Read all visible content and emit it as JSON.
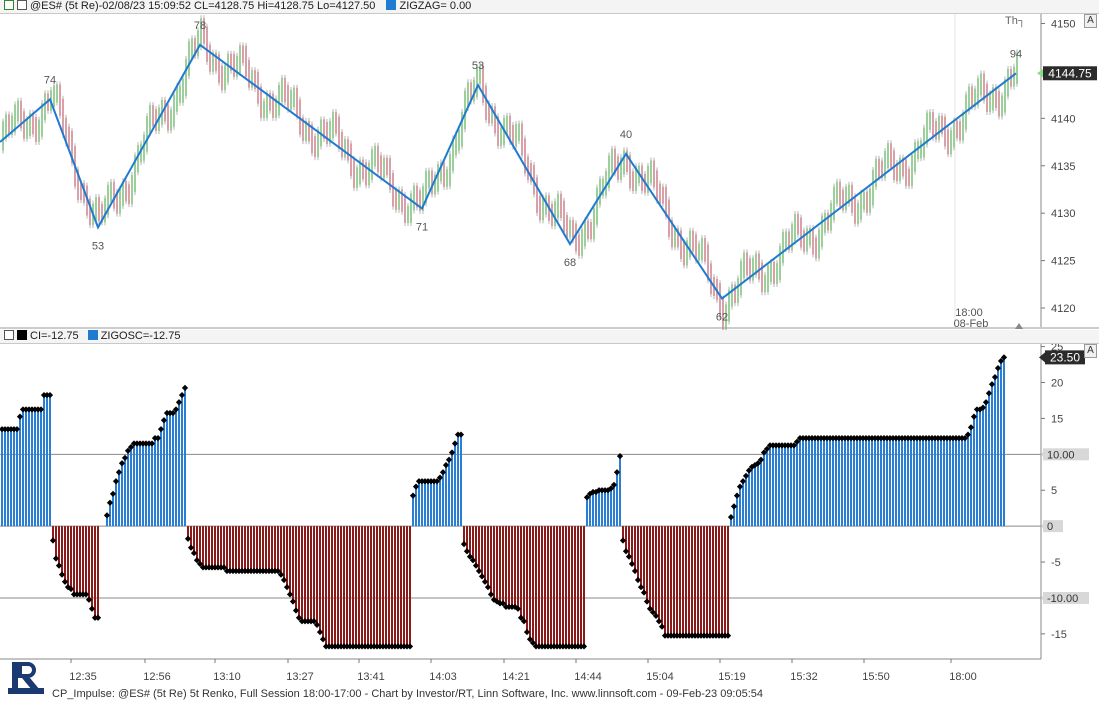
{
  "top_header": {
    "symbol_text": "@ES# (5t Re)-02/08/23 15:09:52 CL=4128.75 Hi=4128.75 Lo=4127.50",
    "zigzag_text": "ZIGZAG= 0.00"
  },
  "bottom_header": {
    "ci_text": "CI=-12.75",
    "zigosc_text": "ZIGOSC=-12.75"
  },
  "autoscale_label": "A",
  "day_marker": "Th┐",
  "footer_text": "CP_Impulse: @ES# (5t Re) 5t Renko, Full Session 18:00-17:00 - Chart by Investor/RT, Linn Software, Inc. www.linnsoft.com - 09-Feb-23 09:05:54",
  "colors": {
    "up_bar": "#2a7fd4",
    "down_bar": "#8b1a1a",
    "zigzag": "#1f7ad1",
    "ci_dot": "#000000",
    "renko_up": "#9bd09b",
    "renko_down": "#d9a0a8",
    "price_marker": "#7ee07e"
  },
  "chart_data": [
    {
      "type": "line",
      "name": "price_panel",
      "ylim": [
        4118,
        4151
      ],
      "y_ticks": [
        4120,
        4125,
        4130,
        4135,
        4140,
        4145,
        4150
      ],
      "last_price_label": "4144.75",
      "date_annotation": [
        "18:00",
        "08-Feb"
      ],
      "zigzag": {
        "x": [
          0,
          50,
          98,
          200,
          422,
          478,
          570,
          626,
          722,
          1016
        ],
        "y": [
          4137.5,
          4142.0,
          4128.5,
          4147.75,
          4130.5,
          4143.5,
          4126.75,
          4136.25,
          4121.0,
          4144.75
        ],
        "pivot_labels": [
          "",
          "74",
          "53",
          "78",
          "71",
          "53",
          "68",
          "40",
          "62",
          "94"
        ]
      }
    },
    {
      "type": "bar",
      "name": "oscillator_panel",
      "ylim": [
        -18.5,
        25.5
      ],
      "y_ticks": [
        -15,
        -10,
        -5,
        0,
        5,
        10,
        15,
        20,
        25
      ],
      "reference_lines": [
        10,
        0,
        -10
      ],
      "last_value_label": "23.50",
      "ref_labels": [
        "10.00",
        "0",
        "-10.00"
      ],
      "x_time_labels": [
        "12:35",
        "12:56",
        "13:10",
        "13:27",
        "13:41",
        "14:03",
        "14:21",
        "14:44",
        "15:04",
        "15:19",
        "15:32",
        "15:50",
        "18:00"
      ],
      "zigosc_series": {
        "start_x": 2,
        "step": 3,
        "values": [
          13.5,
          13.5,
          13.5,
          13.5,
          13.5,
          13.5,
          15.25,
          16.25,
          16.25,
          16.25,
          16.25,
          16.25,
          16.25,
          16.25,
          18.25,
          18.25,
          18.25,
          -2.0,
          -4.5,
          -5.5,
          -6.75,
          -7.75,
          -8.5,
          -8.75,
          -9.5,
          -9.5,
          -9.5,
          -9.5,
          -9.5,
          -10.25,
          -11.5,
          -12.75,
          -12.75,
          0,
          0,
          1.5,
          3.25,
          4.5,
          6.25,
          7.5,
          8.75,
          9.5,
          10.5,
          11.0,
          11.5,
          11.5,
          11.5,
          11.5,
          11.5,
          11.5,
          11.5,
          12.25,
          12.25,
          13.5,
          14.75,
          15.75,
          15.75,
          15.75,
          16.25,
          17.25,
          18.25,
          19.25,
          -1.75,
          -3.0,
          -3.75,
          -4.75,
          -5.25,
          -5.75,
          -5.75,
          -5.75,
          -5.75,
          -5.75,
          -5.75,
          -5.75,
          -5.75,
          -6.25,
          -6.25,
          -6.25,
          -6.25,
          -6.25,
          -6.25,
          -6.25,
          -6.25,
          -6.25,
          -6.25,
          -6.25,
          -6.25,
          -6.25,
          -6.25,
          -6.25,
          -6.25,
          -6.25,
          -6.25,
          -6.75,
          -7.5,
          -8.5,
          -9.5,
          -10.5,
          -11.75,
          -12.75,
          -13.25,
          -13.25,
          -13.25,
          -13.25,
          -13.25,
          -13.75,
          -14.75,
          -15.75,
          -16.75,
          -16.75,
          -16.75,
          -16.75,
          -16.75,
          -16.75,
          -16.75,
          -16.75,
          -16.75,
          -16.75,
          -16.75,
          -16.75,
          -16.75,
          -16.75,
          -16.75,
          -16.75,
          -16.75,
          -16.75,
          -16.75,
          -16.75,
          -16.75,
          -16.75,
          -16.75,
          -16.75,
          -16.75,
          -16.75,
          -16.75,
          -16.75,
          -16.75,
          4.25,
          5.5,
          6.25,
          6.25,
          6.25,
          6.25,
          6.25,
          6.25,
          6.25,
          6.75,
          7.5,
          8.5,
          9.25,
          10.25,
          11.5,
          12.75,
          12.75,
          -2.5,
          -3.5,
          -4.25,
          -4.75,
          -5.5,
          -6.25,
          -7.0,
          -7.75,
          -8.5,
          -9.5,
          -10.25,
          -10.5,
          -10.75,
          -10.75,
          -11.25,
          -11.25,
          -11.25,
          -11.25,
          -11.5,
          -12.75,
          -13.25,
          -14.75,
          -15.75,
          -16.25,
          -16.75,
          -16.75,
          -16.75,
          -16.75,
          -16.75,
          -16.75,
          -16.75,
          -16.75,
          -16.75,
          -16.75,
          -16.75,
          -16.75,
          -16.75,
          -16.75,
          -16.75,
          -16.75,
          -16.75,
          4.0,
          4.5,
          4.75,
          4.75,
          5.0,
          5.0,
          5.0,
          5.0,
          5.25,
          5.75,
          7.5,
          9.75,
          -2.0,
          -3.5,
          -4.25,
          -5.25,
          -6.25,
          -7.5,
          -8.5,
          -9.25,
          -10.5,
          -11.5,
          -12.0,
          -12.5,
          -13.25,
          -14.0,
          -15.25,
          -15.25,
          -15.25,
          -15.25,
          -15.25,
          -15.25,
          -15.25,
          -15.25,
          -15.25,
          -15.25,
          -15.25,
          -15.25,
          -15.25,
          -15.25,
          -15.25,
          -15.25,
          -15.25,
          -15.25,
          -15.25,
          -15.25,
          -15.25,
          -15.25,
          1.25,
          2.75,
          4.25,
          5.5,
          6.25,
          7.0,
          7.75,
          8.25,
          8.5,
          8.75,
          9.25,
          10.25,
          10.75,
          11.25,
          11.25,
          11.25,
          11.25,
          11.25,
          11.25,
          11.25,
          11.25,
          11.25,
          11.75,
          12.25,
          12.25,
          12.25,
          12.25,
          12.25,
          12.25,
          12.25,
          12.25,
          12.25,
          12.25,
          12.25,
          12.25,
          12.25,
          12.25,
          12.25,
          12.25,
          12.25,
          12.25,
          12.25,
          12.25,
          12.25,
          12.25,
          12.25,
          12.25,
          12.25,
          12.25,
          12.25,
          12.25,
          12.25,
          12.25,
          12.25,
          12.25,
          12.25,
          12.25,
          12.25,
          12.25,
          12.25,
          12.25,
          12.25,
          12.25,
          12.25,
          12.25,
          12.25,
          12.25,
          12.25,
          12.25,
          12.25,
          12.25,
          12.25,
          12.25,
          12.25,
          12.25,
          12.25,
          12.25,
          12.25,
          12.25,
          12.75,
          13.75,
          15.25,
          16.25,
          16.25,
          16.5,
          17.25,
          18.5,
          19.75,
          20.75,
          22.0,
          23.0,
          23.5
        ]
      }
    }
  ]
}
